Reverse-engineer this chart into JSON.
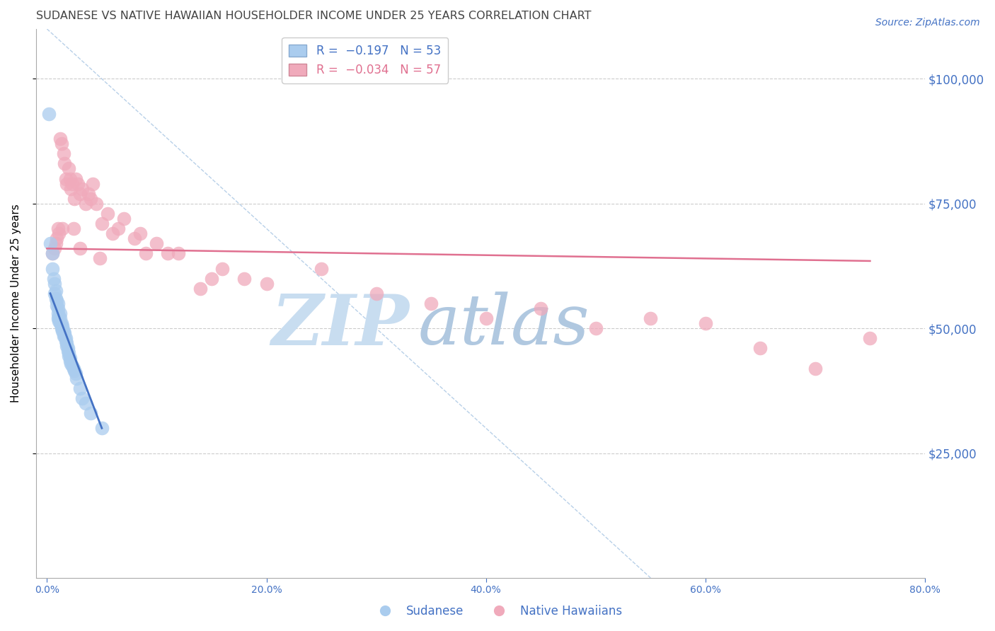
{
  "title": "SUDANESE VS NATIVE HAWAIIAN HOUSEHOLDER INCOME UNDER 25 YEARS CORRELATION CHART",
  "source": "Source: ZipAtlas.com",
  "ylabel": "Householder Income Under 25 years",
  "xlabel_ticks": [
    "0.0%",
    "20.0%",
    "40.0%",
    "60.0%",
    "80.0%"
  ],
  "xlabel_vals": [
    0,
    20,
    40,
    60,
    80
  ],
  "ytick_labels": [
    "$25,000",
    "$50,000",
    "$75,000",
    "$100,000"
  ],
  "ytick_vals": [
    25000,
    50000,
    75000,
    100000
  ],
  "ylim": [
    0,
    110000
  ],
  "xlim": [
    -1,
    80
  ],
  "sudanese_x": [
    0.3,
    0.5,
    0.5,
    0.6,
    0.7,
    0.7,
    0.8,
    0.8,
    0.9,
    0.9,
    1.0,
    1.0,
    1.0,
    1.0,
    1.1,
    1.1,
    1.1,
    1.2,
    1.2,
    1.2,
    1.3,
    1.3,
    1.3,
    1.4,
    1.4,
    1.4,
    1.5,
    1.5,
    1.5,
    1.6,
    1.6,
    1.7,
    1.7,
    1.8,
    1.8,
    1.9,
    1.9,
    2.0,
    2.0,
    2.1,
    2.1,
    2.2,
    2.3,
    2.4,
    2.5,
    2.6,
    2.7,
    3.0,
    3.2,
    3.5,
    4.0,
    5.0,
    0.2
  ],
  "sudanese_y": [
    67000,
    65000,
    62000,
    60000,
    59000,
    57000,
    57500,
    56000,
    55500,
    54500,
    55000,
    54000,
    53000,
    52000,
    52500,
    52000,
    51500,
    53000,
    52000,
    51000,
    51000,
    50500,
    50000,
    50500,
    50000,
    49500,
    49500,
    49000,
    48500,
    49000,
    48500,
    48000,
    47500,
    47000,
    46500,
    46000,
    45500,
    45000,
    44500,
    44000,
    43500,
    43000,
    42500,
    42000,
    41500,
    41000,
    40000,
    38000,
    36000,
    35000,
    33000,
    30000,
    93000
  ],
  "native_hawaiian_x": [
    0.5,
    0.7,
    0.9,
    1.0,
    1.2,
    1.3,
    1.5,
    1.6,
    1.7,
    1.8,
    2.0,
    2.1,
    2.2,
    2.3,
    2.5,
    2.6,
    2.8,
    3.0,
    3.2,
    3.5,
    3.8,
    4.0,
    4.2,
    4.5,
    5.0,
    5.5,
    6.0,
    7.0,
    8.0,
    9.0,
    10.0,
    12.0,
    14.0,
    16.0,
    18.0,
    20.0,
    25.0,
    30.0,
    35.0,
    40.0,
    45.0,
    50.0,
    55.0,
    60.0,
    65.0,
    70.0,
    75.0,
    0.8,
    1.1,
    1.4,
    2.4,
    3.0,
    4.8,
    6.5,
    8.5,
    11.0,
    15.0
  ],
  "native_hawaiian_y": [
    65000,
    66000,
    68000,
    70000,
    88000,
    87000,
    85000,
    83000,
    80000,
    79000,
    82000,
    80000,
    78000,
    79000,
    76000,
    80000,
    79000,
    77000,
    78000,
    75000,
    77000,
    76000,
    79000,
    75000,
    71000,
    73000,
    69000,
    72000,
    68000,
    65000,
    67000,
    65000,
    58000,
    62000,
    60000,
    59000,
    62000,
    57000,
    55000,
    52000,
    54000,
    50000,
    52000,
    51000,
    46000,
    42000,
    48000,
    67000,
    69000,
    70000,
    70000,
    66000,
    64000,
    70000,
    69000,
    65000,
    60000
  ],
  "blue_line_x": [
    0.3,
    5.0
  ],
  "blue_line_y": [
    57000,
    30000
  ],
  "pink_line_x": [
    0,
    75
  ],
  "pink_line_y": [
    66000,
    63500
  ],
  "ref_line_x": [
    0,
    55
  ],
  "ref_line_y": [
    110000,
    0
  ],
  "sudanese_color": "#aaccee",
  "native_hawaiian_color": "#f0aabb",
  "blue_line_color": "#4472c4",
  "pink_line_color": "#e07090",
  "ref_line_color": "#b8d0e8",
  "background_color": "#ffffff",
  "grid_color": "#cccccc",
  "axis_color": "#4472c4",
  "title_color": "#444444",
  "title_fontsize": 11.5,
  "source_fontsize": 10,
  "ylabel_fontsize": 11,
  "ytick_fontsize": 12,
  "xtick_fontsize": 10,
  "watermark_zip": "ZIP",
  "watermark_atlas": "atlas",
  "watermark_color_zip": "#c8ddf0",
  "watermark_color_atlas": "#b0c8e0",
  "watermark_fontsize": 72
}
